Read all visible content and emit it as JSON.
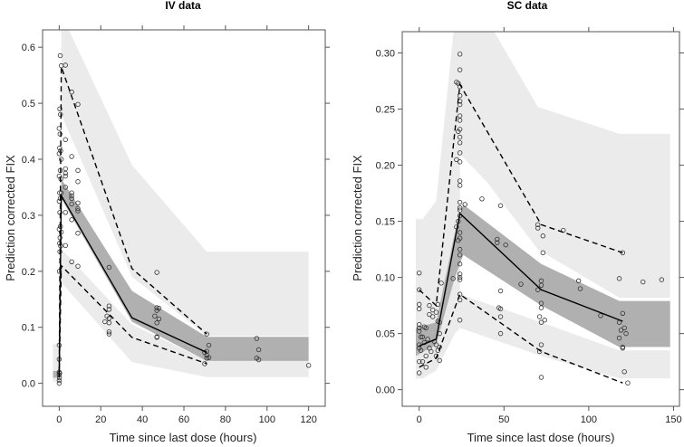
{
  "colors": {
    "pi_band": "#ebebeb",
    "ci_band": "#b0b0b0",
    "line": "#000000",
    "frame": "#555555"
  },
  "chart_data": [
    {
      "type": "scatter",
      "title": "IV data",
      "xlabel": "Time since last dose (hours)",
      "ylabel": "Prediction corrected FIX",
      "xlim": [
        -8,
        128
      ],
      "ylim": [
        -0.041,
        0.631
      ],
      "xticks": [
        0,
        20,
        40,
        60,
        80,
        100,
        120
      ],
      "yticks": [
        0.0,
        0.1,
        0.2,
        0.3,
        0.4,
        0.5,
        0.6
      ],
      "ytick_decimals": 1,
      "bands": [
        {
          "name": "baseline-pi",
          "kind": "pi",
          "x": [
            -3,
            0
          ],
          "upper": [
            0.07,
            0.07
          ],
          "lower": [
            0.003,
            0.003
          ]
        },
        {
          "name": "baseline-ci",
          "kind": "ci",
          "x": [
            -3,
            0
          ],
          "upper": [
            0.022,
            0.022
          ],
          "lower": [
            0.01,
            0.01
          ]
        },
        {
          "name": "upper-percentile-pi",
          "kind": "pi",
          "x": [
            1,
            35,
            71,
            120
          ],
          "upper": [
            0.66,
            0.39,
            0.235,
            0.235
          ],
          "lower": [
            0.48,
            0.19,
            0.085,
            0.085
          ]
        },
        {
          "name": "lower-percentile-pi",
          "kind": "pi",
          "x": [
            1,
            35,
            71,
            120
          ],
          "upper": [
            0.24,
            0.105,
            0.04,
            0.04
          ],
          "lower": [
            0.18,
            0.038,
            0.011,
            0.011
          ]
        },
        {
          "name": "median-ci",
          "kind": "ci",
          "x": [
            1,
            35,
            71,
            120
          ],
          "upper": [
            0.365,
            0.165,
            0.083,
            0.083
          ],
          "lower": [
            0.33,
            0.11,
            0.04,
            0.04
          ]
        }
      ],
      "lines": [
        {
          "name": "observed-median",
          "dash": false,
          "x": [
            0,
            1,
            35,
            71
          ],
          "y": [
            0.015,
            0.335,
            0.117,
            0.055
          ]
        },
        {
          "name": "observed-95th",
          "dash": true,
          "x": [
            0,
            1,
            35,
            71
          ],
          "y": [
            0.02,
            0.565,
            0.205,
            0.088
          ]
        },
        {
          "name": "observed-5th",
          "dash": true,
          "x": [
            0,
            1,
            35,
            71
          ],
          "y": [
            0.01,
            0.21,
            0.082,
            0.035
          ]
        }
      ],
      "points": [
        [
          0.5,
          0.585
        ],
        [
          1,
          0.567
        ],
        [
          3,
          0.568
        ],
        [
          6,
          0.52
        ],
        [
          9,
          0.498
        ],
        [
          0.3,
          0.49
        ],
        [
          0.6,
          0.48
        ],
        [
          0,
          0.455
        ],
        [
          0.4,
          0.445
        ],
        [
          0.2,
          0.42
        ],
        [
          0.7,
          0.415
        ],
        [
          0,
          0.41
        ],
        [
          1,
          0.4
        ],
        [
          0.5,
          0.38
        ],
        [
          0,
          0.37
        ],
        [
          0.8,
          0.365
        ],
        [
          0.2,
          0.34
        ],
        [
          1,
          0.34
        ],
        [
          0.5,
          0.33
        ],
        [
          0,
          0.325
        ],
        [
          0.3,
          0.305
        ],
        [
          0.6,
          0.28
        ],
        [
          0,
          0.275
        ],
        [
          1,
          0.27
        ],
        [
          0.4,
          0.26
        ],
        [
          0.2,
          0.25
        ],
        [
          0.7,
          0.245
        ],
        [
          0.3,
          0.235
        ],
        [
          0.1,
          0.2
        ],
        [
          0,
          0.068
        ],
        [
          0,
          0.043
        ],
        [
          0,
          0.02
        ],
        [
          0.2,
          0.018
        ],
        [
          0,
          0.015
        ],
        [
          0.1,
          0.01
        ],
        [
          0,
          0.005
        ],
        [
          0,
          0.0
        ],
        [
          3,
          0.435
        ],
        [
          3,
          0.383
        ],
        [
          3,
          0.375
        ],
        [
          3,
          0.37
        ],
        [
          3,
          0.35
        ],
        [
          3,
          0.305
        ],
        [
          3,
          0.246
        ],
        [
          6,
          0.405
        ],
        [
          6,
          0.34
        ],
        [
          6,
          0.335
        ],
        [
          6,
          0.33
        ],
        [
          6,
          0.32
        ],
        [
          6,
          0.292
        ],
        [
          6,
          0.217
        ],
        [
          9,
          0.38
        ],
        [
          9,
          0.36
        ],
        [
          9,
          0.322
        ],
        [
          9,
          0.312
        ],
        [
          9,
          0.308
        ],
        [
          9,
          0.268
        ],
        [
          9,
          0.209
        ],
        [
          24,
          0.207
        ],
        [
          24,
          0.138
        ],
        [
          24,
          0.132
        ],
        [
          23,
          0.12
        ],
        [
          24,
          0.116
        ],
        [
          22,
          0.11
        ],
        [
          24,
          0.108
        ],
        [
          24,
          0.092
        ],
        [
          24,
          0.088
        ],
        [
          47,
          0.198
        ],
        [
          47,
          0.135
        ],
        [
          48,
          0.134
        ],
        [
          47,
          0.13
        ],
        [
          46,
          0.12
        ],
        [
          48,
          0.115
        ],
        [
          47,
          0.108
        ],
        [
          47,
          0.083
        ],
        [
          47,
          0.082
        ],
        [
          71,
          0.088
        ],
        [
          72,
          0.068
        ],
        [
          71,
          0.057
        ],
        [
          70,
          0.055
        ],
        [
          71,
          0.05
        ],
        [
          72,
          0.046
        ],
        [
          71,
          0.045
        ],
        [
          70,
          0.035
        ],
        [
          95,
          0.08
        ],
        [
          96,
          0.06
        ],
        [
          95,
          0.045
        ],
        [
          96,
          0.042
        ],
        [
          120,
          0.032
        ]
      ]
    },
    {
      "type": "scatter",
      "title": "SC data",
      "xlabel": "Time since last dose (hours)",
      "ylabel": "Prediction corrected FIX",
      "xlim": [
        -10,
        153.5
      ],
      "ylim": [
        -0.0148,
        0.319
      ],
      "xticks": [
        0,
        50,
        100,
        150
      ],
      "yticks": [
        0.0,
        0.05,
        0.1,
        0.15,
        0.2,
        0.25,
        0.3
      ],
      "ytick_decimals": 2,
      "bands": [
        {
          "name": "absorption-pi",
          "kind": "pi",
          "x": [
            -2,
            2,
            10,
            21,
            24
          ],
          "upper": [
            0.152,
            0.152,
            0.168,
            0.33,
            0.33
          ],
          "lower": [
            0.01,
            0.01,
            0.017,
            0.05,
            0.055
          ]
        },
        {
          "name": "upper-percentile-pi",
          "kind": "pi",
          "x": [
            24,
            40,
            70,
            118,
            148
          ],
          "upper": [
            0.33,
            0.33,
            0.252,
            0.228,
            0.228
          ],
          "lower": [
            0.21,
            0.185,
            0.125,
            0.082,
            0.082
          ]
        },
        {
          "name": "lower-percentile-pi",
          "kind": "pi",
          "x": [
            24,
            72,
            118,
            148
          ],
          "upper": [
            0.085,
            0.06,
            0.035,
            0.035
          ],
          "lower": [
            0.055,
            0.03,
            0.01,
            0.01
          ]
        },
        {
          "name": "median-ci",
          "kind": "ci",
          "x": [
            -2,
            10,
            21,
            26,
            72,
            118,
            148
          ],
          "upper": [
            0.055,
            0.06,
            0.14,
            0.165,
            0.112,
            0.079,
            0.079
          ],
          "lower": [
            0.03,
            0.04,
            0.1,
            0.12,
            0.075,
            0.038,
            0.038
          ]
        }
      ],
      "lines": [
        {
          "name": "observed-median",
          "dash": false,
          "x": [
            0,
            10,
            24,
            72,
            120
          ],
          "y": [
            0.039,
            0.045,
            0.157,
            0.089,
            0.061
          ]
        },
        {
          "name": "observed-95th",
          "dash": true,
          "x": [
            0,
            10,
            24,
            72,
            120
          ],
          "y": [
            0.089,
            0.075,
            0.272,
            0.147,
            0.122
          ]
        },
        {
          "name": "observed-5th",
          "dash": true,
          "x": [
            0,
            10,
            24,
            72,
            120
          ],
          "y": [
            0.02,
            0.028,
            0.085,
            0.034,
            0.006
          ]
        }
      ],
      "points": [
        [
          0,
          0.104
        ],
        [
          0,
          0.089
        ],
        [
          0,
          0.076
        ],
        [
          0,
          0.072
        ],
        [
          0,
          0.058
        ],
        [
          0,
          0.055
        ],
        [
          0,
          0.052
        ],
        [
          1,
          0.047
        ],
        [
          0,
          0.04
        ],
        [
          0,
          0.037
        ],
        [
          1,
          0.035
        ],
        [
          0,
          0.025
        ],
        [
          0,
          0.015
        ],
        [
          3,
          0.056
        ],
        [
          4,
          0.055
        ],
        [
          2,
          0.047
        ],
        [
          5,
          0.045
        ],
        [
          3,
          0.042
        ],
        [
          6,
          0.037
        ],
        [
          7,
          0.034
        ],
        [
          4,
          0.03
        ],
        [
          2,
          0.025
        ],
        [
          4,
          0.02
        ],
        [
          6,
          0.075
        ],
        [
          6,
          0.067
        ],
        [
          8,
          0.071
        ],
        [
          10,
          0.069
        ],
        [
          8,
          0.065
        ],
        [
          11,
          0.061
        ],
        [
          9,
          0.043
        ],
        [
          10,
          0.04
        ],
        [
          12,
          0.038
        ],
        [
          11,
          0.035
        ],
        [
          10,
          0.03
        ],
        [
          11,
          0.076
        ],
        [
          13,
          0.095
        ],
        [
          12,
          0.06
        ],
        [
          12,
          0.05
        ],
        [
          12,
          0.026
        ],
        [
          24,
          0.299
        ],
        [
          24,
          0.285
        ],
        [
          22,
          0.274
        ],
        [
          23,
          0.273
        ],
        [
          24,
          0.27
        ],
        [
          24,
          0.262
        ],
        [
          24,
          0.257
        ],
        [
          24,
          0.254
        ],
        [
          24,
          0.244
        ],
        [
          24,
          0.24
        ],
        [
          24,
          0.232
        ],
        [
          23,
          0.23
        ],
        [
          24,
          0.225
        ],
        [
          24,
          0.22
        ],
        [
          24,
          0.211
        ],
        [
          22,
          0.205
        ],
        [
          24,
          0.203
        ],
        [
          24,
          0.186
        ],
        [
          24,
          0.182
        ],
        [
          24,
          0.167
        ],
        [
          24,
          0.162
        ],
        [
          24,
          0.16
        ],
        [
          24,
          0.155
        ],
        [
          23,
          0.15
        ],
        [
          22,
          0.145
        ],
        [
          24,
          0.14
        ],
        [
          24,
          0.135
        ],
        [
          23,
          0.133
        ],
        [
          24,
          0.125
        ],
        [
          24,
          0.12
        ],
        [
          24,
          0.112
        ],
        [
          24,
          0.103
        ],
        [
          24,
          0.1
        ],
        [
          24,
          0.098
        ],
        [
          20,
          0.099
        ],
        [
          24,
          0.085
        ],
        [
          24,
          0.08
        ],
        [
          24,
          0.062
        ],
        [
          27,
          0.165
        ],
        [
          37,
          0.17
        ],
        [
          48,
          0.164
        ],
        [
          46,
          0.134
        ],
        [
          46,
          0.131
        ],
        [
          51,
          0.129
        ],
        [
          48,
          0.088
        ],
        [
          47,
          0.073
        ],
        [
          48,
          0.072
        ],
        [
          48,
          0.065
        ],
        [
          48,
          0.05
        ],
        [
          60,
          0.094
        ],
        [
          70,
          0.147
        ],
        [
          70,
          0.144
        ],
        [
          73,
          0.137
        ],
        [
          73,
          0.122
        ],
        [
          72,
          0.097
        ],
        [
          72,
          0.093
        ],
        [
          70,
          0.089
        ],
        [
          72,
          0.077
        ],
        [
          72,
          0.073
        ],
        [
          71,
          0.065
        ],
        [
          74,
          0.062
        ],
        [
          72,
          0.06
        ],
        [
          72,
          0.04
        ],
        [
          71,
          0.034
        ],
        [
          72,
          0.011
        ],
        [
          85,
          0.142
        ],
        [
          94,
          0.097
        ],
        [
          95,
          0.09
        ],
        [
          107,
          0.066
        ],
        [
          120,
          0.122
        ],
        [
          118,
          0.099
        ],
        [
          120,
          0.068
        ],
        [
          118,
          0.06
        ],
        [
          121,
          0.055
        ],
        [
          119,
          0.053
        ],
        [
          122,
          0.05
        ],
        [
          118,
          0.046
        ],
        [
          120,
          0.038
        ],
        [
          120,
          0.037
        ],
        [
          121,
          0.016
        ],
        [
          123,
          0.006
        ],
        [
          132,
          0.096
        ],
        [
          143,
          0.098
        ]
      ]
    }
  ]
}
